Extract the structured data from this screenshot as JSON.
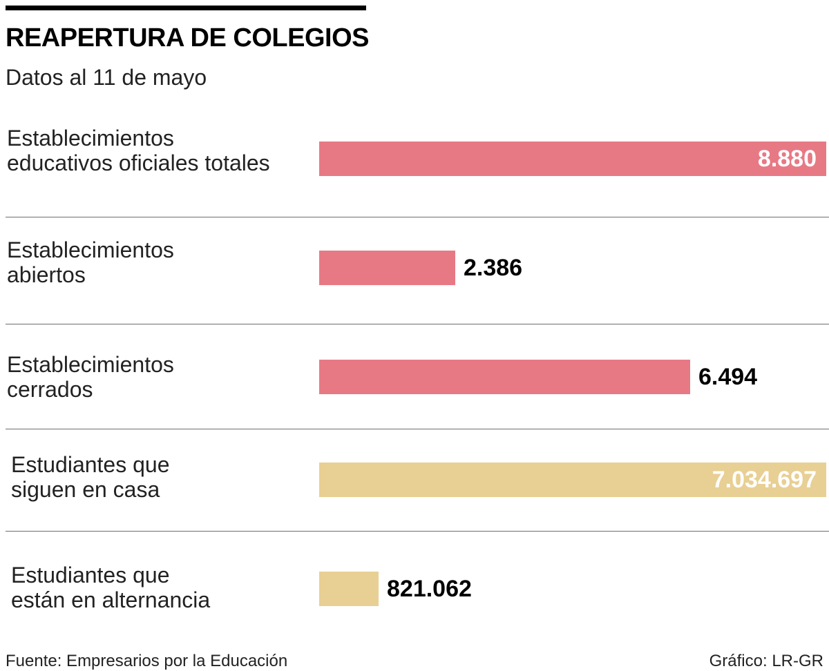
{
  "header": {
    "title": "REAPERTURA DE COLEGIOS",
    "subtitle": "Datos al 11 de mayo"
  },
  "colors": {
    "pink": "#e77985",
    "gold": "#e8cf93"
  },
  "chart_data": {
    "type": "bar",
    "orientation": "horizontal",
    "categories": [
      "Establecimientos\neducativos oficiales totales",
      "Establecimientos\nabiertos",
      "Establecimientos\ncerrados",
      "Estudiantes que\nsiguen en casa",
      "Estudiantes que\nestán en alternancia"
    ],
    "values": [
      8880,
      2386,
      6494,
      7034697,
      821062
    ],
    "value_labels": [
      "8.880",
      "2.386",
      "6.494",
      "7.034.697",
      "821.062"
    ],
    "groups": [
      {
        "name": "Establecimientos",
        "color": "#e77985",
        "indices": [
          0,
          1,
          2
        ],
        "xlim": [
          0,
          8880
        ]
      },
      {
        "name": "Estudiantes",
        "color": "#e8cf93",
        "indices": [
          3,
          4
        ],
        "xlim": [
          0,
          7034697
        ]
      }
    ],
    "title": "REAPERTURA DE COLEGIOS",
    "subtitle": "Datos al 11 de mayo",
    "grid": false,
    "legend": "none"
  },
  "footer": {
    "source": "Fuente: Empresarios por la Educación",
    "credit": "Gráfico: LR-GR"
  }
}
